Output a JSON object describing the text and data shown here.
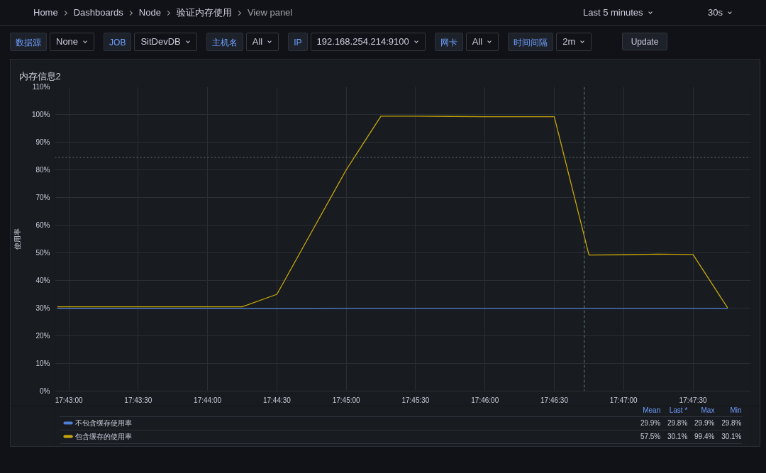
{
  "chart_data": {
    "type": "line",
    "title": "内存信息2",
    "ylabel": "使用率",
    "x": [
      17.71528,
      17.71667,
      17.72083,
      17.725,
      17.72917,
      17.73333,
      17.7375,
      17.74167,
      17.74583,
      17.75,
      17.75417,
      17.75833,
      17.7625,
      17.76667,
      17.77083,
      17.775,
      17.77917,
      17.78333,
      17.7875,
      17.79167,
      17.79583
    ],
    "series": [
      {
        "name": "不包含缓存使用率",
        "color": "#4f80d6",
        "values": [
          29.8,
          29.8,
          29.8,
          29.8,
          29.8,
          29.8,
          29.8,
          29.8,
          29.8,
          29.9,
          29.9,
          29.9,
          29.9,
          29.9,
          29.9,
          29.9,
          29.9,
          29.9,
          29.9,
          29.9,
          29.8
        ]
      },
      {
        "name": "包含缓存的使用率",
        "color": "#c9a80b",
        "values": [
          30.5,
          30.5,
          30.5,
          30.5,
          30.5,
          30.5,
          30.5,
          35.0,
          57.5,
          80.0,
          99.4,
          99.4,
          99.3,
          99.2,
          99.2,
          99.2,
          49.2,
          49.3,
          49.5,
          49.4,
          30.1
        ]
      }
    ],
    "xlim": [
      17.715,
      17.79861
    ],
    "xticks": [
      {
        "value": 17.71667,
        "label": "17:43:00"
      },
      {
        "value": 17.725,
        "label": "17:43:30"
      },
      {
        "value": 17.73333,
        "label": "17:44:00"
      },
      {
        "value": 17.74167,
        "label": "17:44:30"
      },
      {
        "value": 17.75,
        "label": "17:45:00"
      },
      {
        "value": 17.75833,
        "label": "17:45:30"
      },
      {
        "value": 17.76667,
        "label": "17:46:00"
      },
      {
        "value": 17.775,
        "label": "17:46:30"
      },
      {
        "value": 17.78333,
        "label": "17:47:00"
      },
      {
        "value": 17.79167,
        "label": "17:47:30"
      }
    ],
    "ylim": [
      0,
      110
    ],
    "yticks": [
      {
        "value": 0,
        "label": "0%"
      },
      {
        "value": 10,
        "label": "10%"
      },
      {
        "value": 20,
        "label": "20%"
      },
      {
        "value": 30,
        "label": "30%"
      },
      {
        "value": 40,
        "label": "40%"
      },
      {
        "value": 50,
        "label": "50%"
      },
      {
        "value": 60,
        "label": "60%"
      },
      {
        "value": 70,
        "label": "70%"
      },
      {
        "value": 80,
        "label": "80%"
      },
      {
        "value": 90,
        "label": "90%"
      },
      {
        "value": 100,
        "label": "100%"
      },
      {
        "value": 110,
        "label": "110%"
      }
    ],
    "ref_lines": [
      {
        "axis": "y",
        "value": 84.5,
        "color": "#5f7f80",
        "line_style": "dotted"
      },
      {
        "axis": "x",
        "value": 17.77861,
        "color": "#5f7f80",
        "line_style": "dashed"
      }
    ],
    "grid": true,
    "legend": "bottom",
    "annotations": [
      "Home",
      "Dashboards",
      "Node",
      "验证内存使用",
      "View panel",
      "Last 5 minutes",
      "30s",
      "数据源",
      "None",
      "JOB",
      "SitDevDB",
      "主机名",
      "All",
      "IP",
      "192.168.254.214:9100",
      "网卡",
      "All",
      "时间间隔",
      "2m",
      "Update",
      "Mean",
      "Last *",
      "Max",
      "Min",
      "29.9%",
      "29.8%",
      "29.9%",
      "29.8%",
      "57.5%",
      "30.1%",
      "99.4%",
      "30.1%"
    ]
  }
}
